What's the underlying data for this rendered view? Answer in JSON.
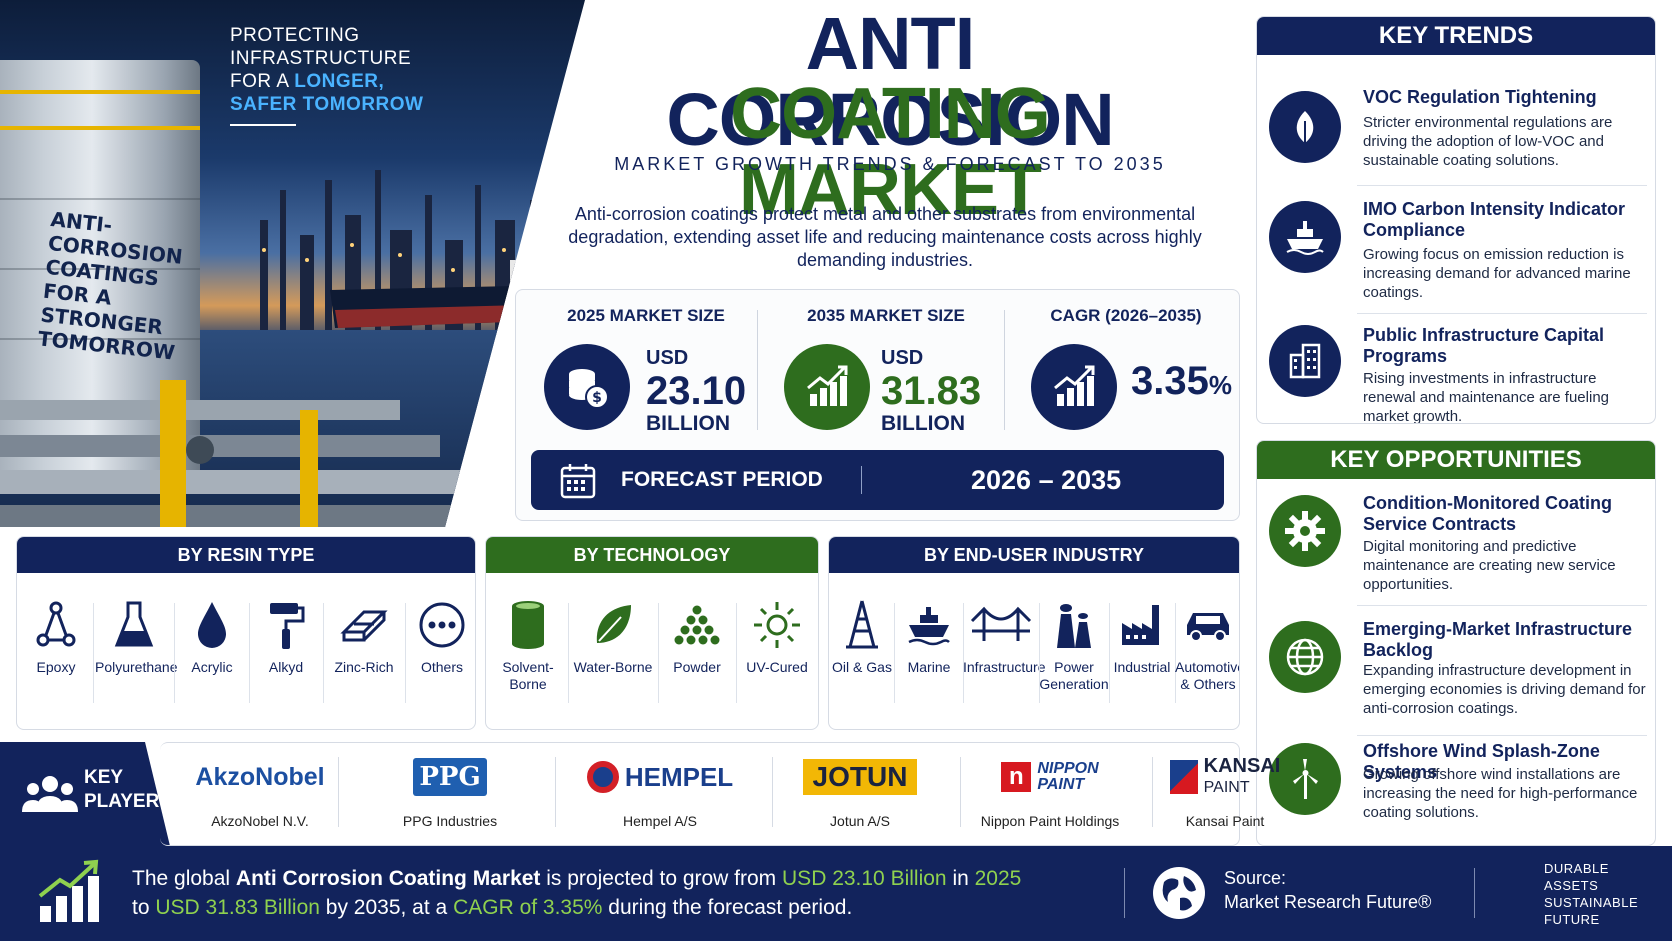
{
  "hero": {
    "tagline_1": "PROTECTING",
    "tagline_2": "INFRASTRUCTURE",
    "tagline_3_pre": "FOR A ",
    "tagline_3_hl": "LONGER,",
    "tagline_4": "SAFER TOMORROW",
    "tank_text": [
      "ANTI-CORROSION",
      "COATINGS",
      "FOR A STRONGER",
      "TOMORROW"
    ]
  },
  "title": {
    "line1": "ANTI CORROSION",
    "line2": "COATING MARKET",
    "subtitle": "MARKET GROWTH TRENDS & FORECAST TO 2035",
    "description": "Anti-corrosion coatings protect metal and other substrates from environmental degradation, extending asset life and reducing maintenance costs across highly demanding industries."
  },
  "stats": {
    "s2025": {
      "label": "2025 MARKET SIZE",
      "usd": "USD",
      "value": "23.10",
      "unit": "BILLION"
    },
    "s2035": {
      "label": "2035 MARKET SIZE",
      "usd": "USD",
      "value": "31.83",
      "unit": "BILLION"
    },
    "cagr": {
      "label": "CAGR (2026–2035)",
      "value": "3.35",
      "pct": "%"
    },
    "forecast_label": "FORECAST PERIOD",
    "forecast_value": "2026 – 2035"
  },
  "key_trends": {
    "header": "KEY TRENDS",
    "items": [
      {
        "title": "VOC Regulation Tightening",
        "desc": "Stricter environmental regulations are driving the adoption of low-VOC and sustainable coating solutions."
      },
      {
        "title": "IMO Carbon Intensity Indicator Compliance",
        "desc": "Growing focus on emission reduction is increasing demand for advanced marine coatings."
      },
      {
        "title": "Public Infrastructure Capital Programs",
        "desc": "Rising investments in infrastructure renewal and maintenance are fueling market growth."
      }
    ]
  },
  "key_opportunities": {
    "header": "KEY OPPORTUNITIES",
    "items": [
      {
        "title": "Condition-Monitored Coating Service Contracts",
        "desc": "Digital monitoring and predictive maintenance are creating new service opportunities."
      },
      {
        "title": "Emerging-Market Infrastructure Backlog",
        "desc": "Expanding infrastructure development in emerging economies is driving demand for anti-corrosion coatings."
      },
      {
        "title": "Offshore Wind Splash-Zone Systems",
        "desc": "Growing offshore wind installations are increasing the need for high-performance coating solutions."
      }
    ]
  },
  "segments": {
    "resin": {
      "header": "BY RESIN TYPE",
      "items": [
        "Epoxy",
        "Polyurethane",
        "Acrylic",
        "Alkyd",
        "Zinc-Rich",
        "Others"
      ]
    },
    "technology": {
      "header": "BY TECHNOLOGY",
      "items": [
        "Solvent-\nBorne",
        "Water-Borne",
        "Powder",
        "UV-Cured"
      ]
    },
    "enduser": {
      "header": "BY END-USER INDUSTRY",
      "items": [
        "Oil & Gas",
        "Marine",
        "Infrastructure",
        "Power\nGeneration",
        "Industrial",
        "Automotive\n& Others"
      ]
    }
  },
  "players": {
    "label_1": "KEY",
    "label_2": "PLAYERS",
    "items": [
      {
        "logo": "AkzoNobel",
        "name": "AkzoNobel N.V."
      },
      {
        "logo": "PPG",
        "name": "PPG Industries"
      },
      {
        "logo": "HEMPEL",
        "name": "Hempel A/S"
      },
      {
        "logo": "JOTUN",
        "name": "Jotun A/S"
      },
      {
        "logo_1": "NIPPON",
        "logo_2": "PAINT",
        "name": "Nippon Paint Holdings"
      },
      {
        "logo_1": "KANSAI",
        "logo_2": "PAINT",
        "name": "Kansai Paint"
      }
    ]
  },
  "footer": {
    "t1": "The global ",
    "t2": "Anti Corrosion Coating Market",
    "t3": " is projected to grow from ",
    "t4": "USD 23.10 Billion",
    "t5": " in ",
    "t6": "2025",
    "t7": "to ",
    "t8": "USD 31.83 Billion",
    "t9": " by 2035, at a ",
    "t10": "CAGR of 3.35%",
    "t11": " during the forecast period.",
    "source_label": "Source:",
    "source_value": "Market Research Future®",
    "tagline": [
      "DURABLE",
      "ASSETS",
      "SUSTAINABLE",
      "FUTURE"
    ]
  },
  "colors": {
    "navy": "#12235c",
    "green": "#2e6d1e",
    "accent_blue": "#4ab3ff",
    "footer_green": "#8fd14f"
  }
}
